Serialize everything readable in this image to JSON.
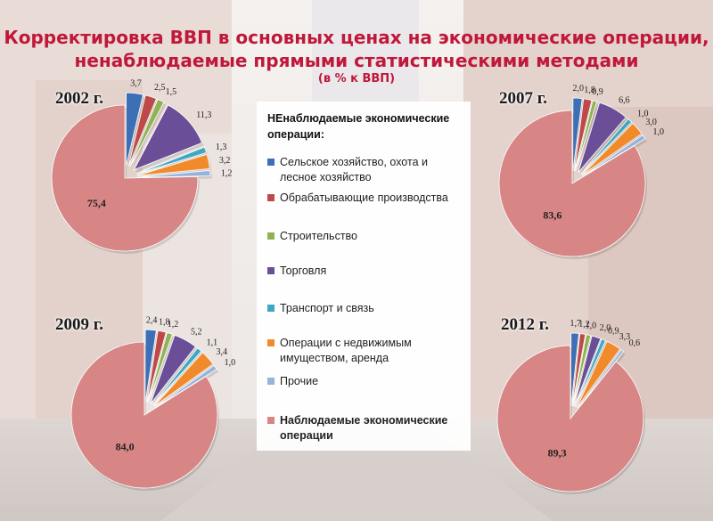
{
  "title": {
    "line1": "Корректировка ВВП в основных ценах на экономические операции,",
    "line2": "ненаблюдаемые прямыми статистическими методами",
    "units": "(в % к ВВП)"
  },
  "legend": {
    "title": "НЕнаблюдаемые экономические операции:",
    "items": [
      {
        "label": "Сельское хозяйство, охота и лесное хозяйство",
        "color": "#3d6fb6"
      },
      {
        "label": "Обрабатывающие производства",
        "color": "#bd4a48"
      },
      {
        "label": "Строительство",
        "color": "#8fb354"
      },
      {
        "label": "Торговля",
        "color": "#6a4f98"
      },
      {
        "label": "Транспорт и связь",
        "color": "#3ea8c4"
      },
      {
        "label": "Операции с недвижимым имуществом, аренда",
        "color": "#f08a2a"
      },
      {
        "label": "Прочие",
        "color": "#98b2dc"
      },
      {
        "label": "Наблюдаемые экономические операции",
        "color": "#d88585"
      }
    ]
  },
  "chart_data": [
    {
      "type": "pie",
      "title": "2002 г.",
      "values": [
        3.7,
        2.5,
        1.5,
        11.3,
        1.3,
        3.2,
        1.2,
        75.4
      ],
      "labels": [
        "3,7",
        "2,5",
        "1,5",
        "11,3",
        "1,3",
        "3,2",
        "1,2",
        "75,4"
      ]
    },
    {
      "type": "pie",
      "title": "2007 г.",
      "values": [
        2.0,
        1.8,
        0.9,
        6.6,
        1.0,
        3.0,
        1.0,
        83.6
      ],
      "labels": [
        "2,0",
        "1,8",
        "0,9",
        "6,6",
        "1,0",
        "3,0",
        "1,0",
        "83,6"
      ]
    },
    {
      "type": "pie",
      "title": "2009 г.",
      "values": [
        2.4,
        1.8,
        1.2,
        5.2,
        1.1,
        3.4,
        1.0,
        84.0
      ],
      "labels": [
        "2,4",
        "1,8",
        "1,2",
        "5,2",
        "1,1",
        "3,4",
        "1,0",
        "84,0"
      ]
    },
    {
      "type": "pie",
      "title": "2012 г.",
      "values": [
        1.7,
        1.2,
        1.0,
        2.0,
        0.9,
        3.3,
        0.6,
        89.3
      ],
      "labels": [
        "1,7",
        "1,2",
        "1,0",
        "2,0",
        "0,9",
        "3,3",
        "0,6",
        "89,3"
      ]
    }
  ]
}
